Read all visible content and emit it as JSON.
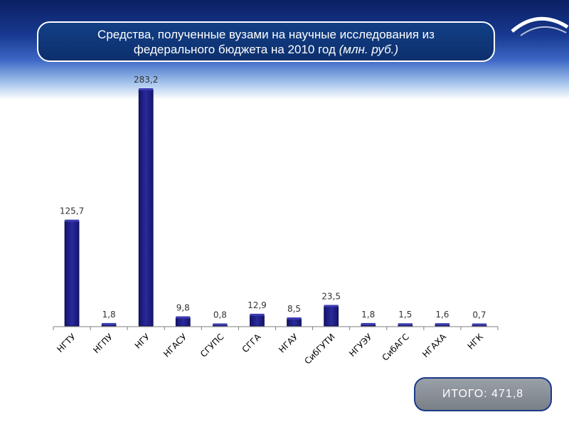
{
  "title": {
    "line1": "Средства, полученные вузами на научные исследования из",
    "line2": "федерального бюджета на 2010 год",
    "unit": "(млн. руб.)"
  },
  "total": "ИТОГО: 471,8",
  "colors": {
    "bar": "#14146e",
    "bar_top": "#2a2a9a",
    "header": "#0d2f6d",
    "axis": "#7f7f7f"
  },
  "chart_data": {
    "type": "bar",
    "categories": [
      "НГТУ",
      "НГПУ",
      "НГУ",
      "НГАСУ",
      "СГУПС",
      "СГГА",
      "НГАУ",
      "СибГУТИ",
      "НГУЭУ",
      "СибАГС",
      "НГАХА",
      "НГК"
    ],
    "values": [
      125.7,
      1.8,
      283.2,
      9.8,
      0.8,
      12.9,
      8.5,
      23.5,
      1.8,
      1.5,
      1.6,
      0.7
    ],
    "data_labels": [
      "125,7",
      "1,8",
      "283,2",
      "9,8",
      "0,8",
      "12,9",
      "8,5",
      "23,5",
      "1,8",
      "1,5",
      "1,6",
      "0,7"
    ],
    "ylim": [
      0,
      283.2
    ],
    "grid": false,
    "legend": "none"
  }
}
